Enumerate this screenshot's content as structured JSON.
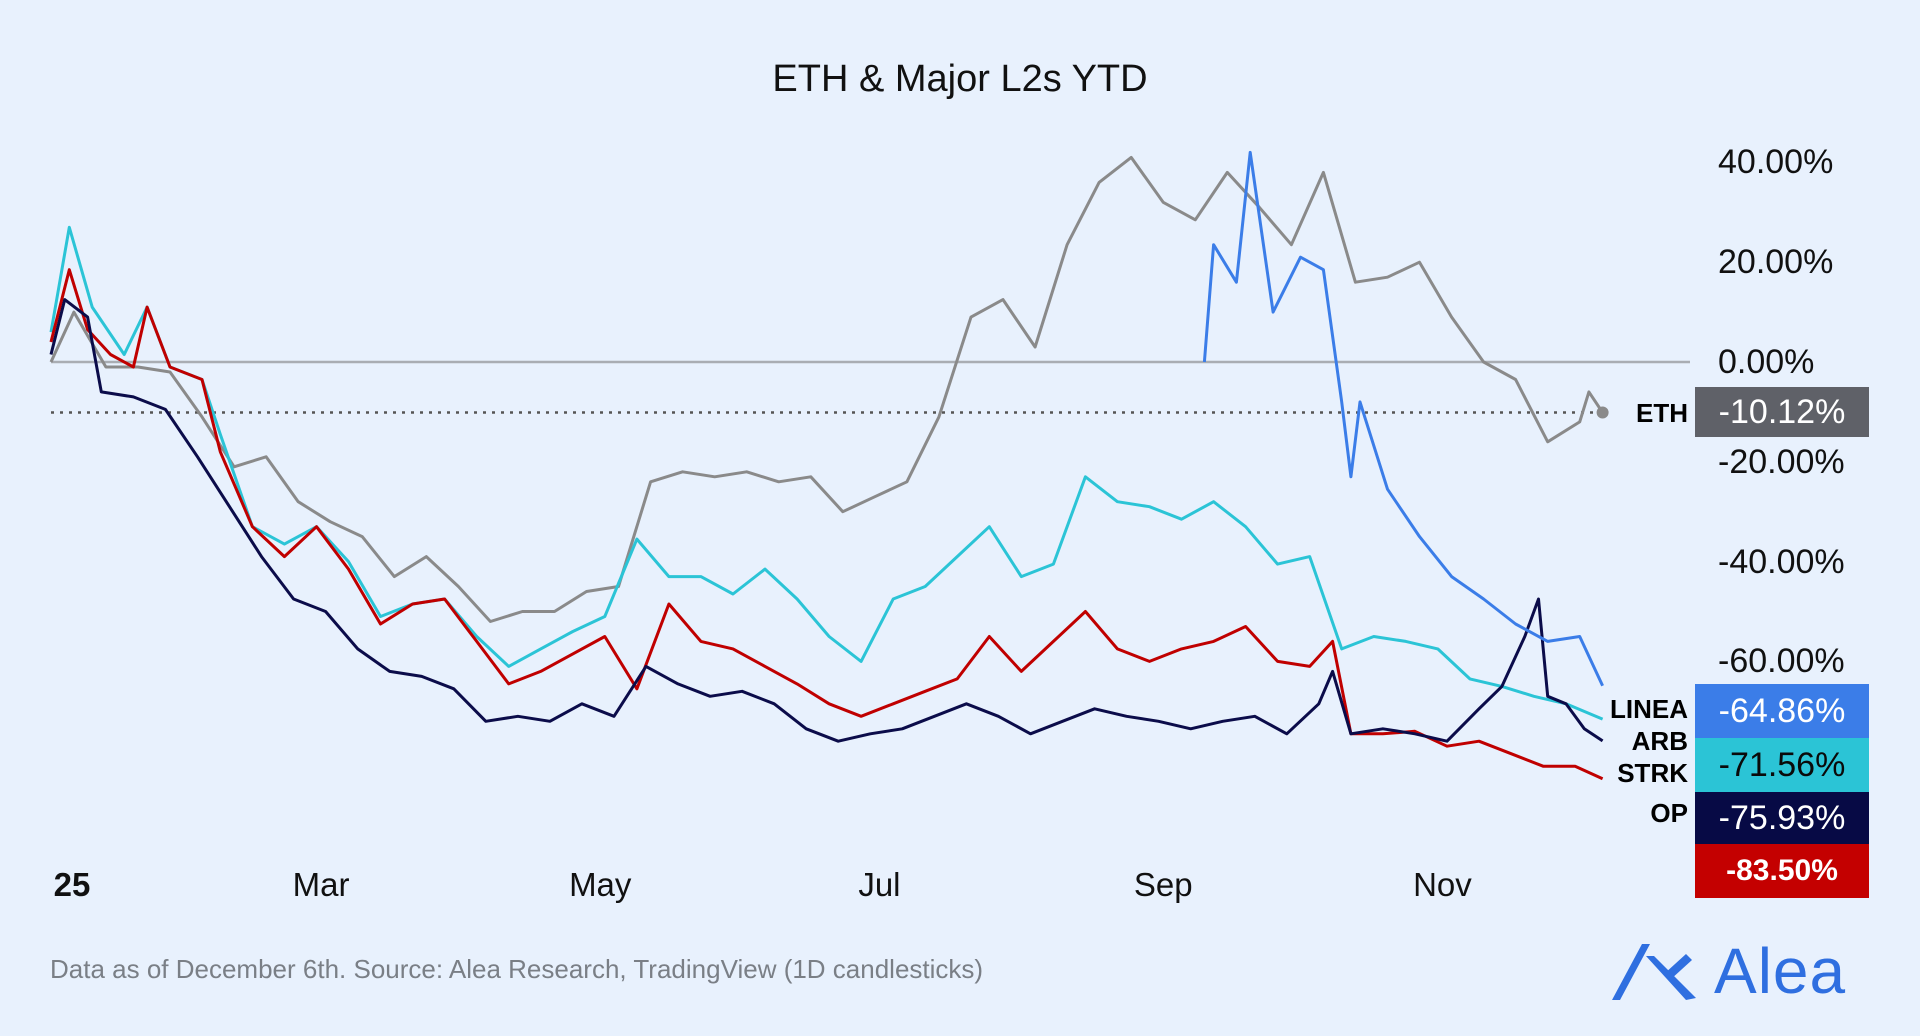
{
  "chart_data": {
    "type": "line",
    "title": "ETH & Major L2s YTD",
    "ylim": [
      -99,
      46
    ],
    "xlim": [
      "2025-01-01",
      "2025-12-20"
    ],
    "grid": false,
    "y_ticks": [
      "40.00%",
      "20.00%",
      "0.00%",
      "-20.00%",
      "-40.00%",
      "-60.00%"
    ],
    "y_tick_values": [
      40,
      20,
      0,
      -20,
      -40,
      -60
    ],
    "x_ticks": [
      {
        "label": "25",
        "date": "2025-01-01"
      },
      {
        "label": "Mar",
        "date": "2025-03-01"
      },
      {
        "label": "May",
        "date": "2025-05-01"
      },
      {
        "label": "Jul",
        "date": "2025-07-01"
      },
      {
        "label": "Sep",
        "date": "2025-09-01"
      },
      {
        "label": "Nov",
        "date": "2025-11-01"
      }
    ],
    "reference_line": {
      "value": -10.12,
      "style": "dotted"
    },
    "series": [
      {
        "name": "ETH",
        "color": "#8a8a8a",
        "last_label": "-10.12%",
        "box_color": "#5f6168",
        "box_text_color": "#ffffff",
        "points": [
          [
            "2025-01-01",
            0
          ],
          [
            "2025-01-06",
            10
          ],
          [
            "2025-01-13",
            -1
          ],
          [
            "2025-01-20",
            -1
          ],
          [
            "2025-01-27",
            -2
          ],
          [
            "2025-02-03",
            -11
          ],
          [
            "2025-02-10",
            -21
          ],
          [
            "2025-02-17",
            -19
          ],
          [
            "2025-02-24",
            -28
          ],
          [
            "2025-03-03",
            -32
          ],
          [
            "2025-03-10",
            -35
          ],
          [
            "2025-03-17",
            -43
          ],
          [
            "2025-03-24",
            -39
          ],
          [
            "2025-03-31",
            -45
          ],
          [
            "2025-04-07",
            -52
          ],
          [
            "2025-04-14",
            -50
          ],
          [
            "2025-04-21",
            -50
          ],
          [
            "2025-04-28",
            -46
          ],
          [
            "2025-05-05",
            -45
          ],
          [
            "2025-05-12",
            -24
          ],
          [
            "2025-05-19",
            -22
          ],
          [
            "2025-05-26",
            -23
          ],
          [
            "2025-06-02",
            -22
          ],
          [
            "2025-06-09",
            -24
          ],
          [
            "2025-06-16",
            -23
          ],
          [
            "2025-06-23",
            -30
          ],
          [
            "2025-06-30",
            -27
          ],
          [
            "2025-07-07",
            -24
          ],
          [
            "2025-07-14",
            -11
          ],
          [
            "2025-07-21",
            9
          ],
          [
            "2025-07-28",
            12.5
          ],
          [
            "2025-08-04",
            3
          ],
          [
            "2025-08-11",
            23.5
          ],
          [
            "2025-08-18",
            36
          ],
          [
            "2025-08-25",
            41
          ],
          [
            "2025-09-01",
            32
          ],
          [
            "2025-09-08",
            28.5
          ],
          [
            "2025-09-15",
            38
          ],
          [
            "2025-09-22",
            31
          ],
          [
            "2025-09-29",
            23.5
          ],
          [
            "2025-10-06",
            38
          ],
          [
            "2025-10-13",
            16
          ],
          [
            "2025-10-20",
            17
          ],
          [
            "2025-10-27",
            20
          ],
          [
            "2025-11-03",
            9
          ],
          [
            "2025-11-10",
            0
          ],
          [
            "2025-11-17",
            -3.5
          ],
          [
            "2025-11-24",
            -16
          ],
          [
            "2025-12-01",
            -12
          ],
          [
            "2025-12-03",
            -6
          ],
          [
            "2025-12-06",
            -10.12
          ]
        ]
      },
      {
        "name": "LINEA",
        "color": "#3b7de8",
        "last_label": "-64.86%",
        "box_color": "#3b7de8",
        "box_text_color": "#ffffff",
        "points": [
          [
            "2025-09-10",
            0
          ],
          [
            "2025-09-12",
            23.5
          ],
          [
            "2025-09-17",
            16
          ],
          [
            "2025-09-20",
            42
          ],
          [
            "2025-09-25",
            10
          ],
          [
            "2025-10-01",
            21
          ],
          [
            "2025-10-06",
            18.5
          ],
          [
            "2025-10-10",
            -8
          ],
          [
            "2025-10-12",
            -23
          ],
          [
            "2025-10-14",
            -8
          ],
          [
            "2025-10-20",
            -25.5
          ],
          [
            "2025-10-27",
            -35
          ],
          [
            "2025-11-03",
            -43
          ],
          [
            "2025-11-10",
            -47.5
          ],
          [
            "2025-11-17",
            -52.5
          ],
          [
            "2025-11-24",
            -56
          ],
          [
            "2025-12-01",
            -55
          ],
          [
            "2025-12-06",
            -64.86
          ]
        ]
      },
      {
        "name": "ARB",
        "color": "#2bc4d6",
        "last_label": "-71.56%",
        "box_color": "#2bc4d6",
        "box_text_color": "#0a0a0a",
        "points": [
          [
            "2025-01-01",
            6
          ],
          [
            "2025-01-05",
            27
          ],
          [
            "2025-01-10",
            11
          ],
          [
            "2025-01-17",
            1.5
          ],
          [
            "2025-01-22",
            11
          ],
          [
            "2025-01-27",
            -1
          ],
          [
            "2025-02-03",
            -3.5
          ],
          [
            "2025-02-07",
            -14.5
          ],
          [
            "2025-02-14",
            -33
          ],
          [
            "2025-02-21",
            -36.5
          ],
          [
            "2025-02-28",
            -33
          ],
          [
            "2025-03-07",
            -40
          ],
          [
            "2025-03-14",
            -51
          ],
          [
            "2025-03-21",
            -48.5
          ],
          [
            "2025-03-28",
            -47.5
          ],
          [
            "2025-04-04",
            -55
          ],
          [
            "2025-04-11",
            -61
          ],
          [
            "2025-04-18",
            -57.5
          ],
          [
            "2025-04-25",
            -54
          ],
          [
            "2025-05-02",
            -51
          ],
          [
            "2025-05-09",
            -35.5
          ],
          [
            "2025-05-16",
            -43
          ],
          [
            "2025-05-23",
            -43
          ],
          [
            "2025-05-30",
            -46.5
          ],
          [
            "2025-06-06",
            -41.5
          ],
          [
            "2025-06-13",
            -47.5
          ],
          [
            "2025-06-20",
            -55
          ],
          [
            "2025-06-27",
            -60
          ],
          [
            "2025-07-04",
            -47.5
          ],
          [
            "2025-07-11",
            -45
          ],
          [
            "2025-07-18",
            -39
          ],
          [
            "2025-07-25",
            -33
          ],
          [
            "2025-08-01",
            -43
          ],
          [
            "2025-08-08",
            -40.5
          ],
          [
            "2025-08-15",
            -23
          ],
          [
            "2025-08-22",
            -28
          ],
          [
            "2025-08-29",
            -29
          ],
          [
            "2025-09-05",
            -31.5
          ],
          [
            "2025-09-12",
            -28
          ],
          [
            "2025-09-19",
            -33
          ],
          [
            "2025-09-26",
            -40.5
          ],
          [
            "2025-10-03",
            -39
          ],
          [
            "2025-10-10",
            -57.5
          ],
          [
            "2025-10-17",
            -55
          ],
          [
            "2025-10-24",
            -56
          ],
          [
            "2025-10-31",
            -57.5
          ],
          [
            "2025-11-07",
            -63.5
          ],
          [
            "2025-11-14",
            -65
          ],
          [
            "2025-11-21",
            -67
          ],
          [
            "2025-11-28",
            -68.5
          ],
          [
            "2025-12-06",
            -71.56
          ]
        ]
      },
      {
        "name": "STRK",
        "color": "#0b0c4a",
        "last_label": "-75.93%",
        "box_color": "#070a45",
        "box_text_color": "#ffffff",
        "points": [
          [
            "2025-01-01",
            1.5
          ],
          [
            "2025-01-04",
            12.5
          ],
          [
            "2025-01-09",
            9
          ],
          [
            "2025-01-12",
            -6
          ],
          [
            "2025-01-19",
            -7
          ],
          [
            "2025-01-26",
            -9.5
          ],
          [
            "2025-02-02",
            -19
          ],
          [
            "2025-02-09",
            -29
          ],
          [
            "2025-02-16",
            -39
          ],
          [
            "2025-02-23",
            -47.5
          ],
          [
            "2025-03-02",
            -50
          ],
          [
            "2025-03-09",
            -57.5
          ],
          [
            "2025-03-16",
            -62
          ],
          [
            "2025-03-23",
            -63
          ],
          [
            "2025-03-30",
            -65.5
          ],
          [
            "2025-04-06",
            -72
          ],
          [
            "2025-04-13",
            -71
          ],
          [
            "2025-04-20",
            -72
          ],
          [
            "2025-04-27",
            -68.5
          ],
          [
            "2025-05-04",
            -71
          ],
          [
            "2025-05-11",
            -61
          ],
          [
            "2025-05-18",
            -64.5
          ],
          [
            "2025-05-25",
            -67
          ],
          [
            "2025-06-01",
            -66
          ],
          [
            "2025-06-08",
            -68.5
          ],
          [
            "2025-06-15",
            -73.5
          ],
          [
            "2025-06-22",
            -76
          ],
          [
            "2025-06-29",
            -74.5
          ],
          [
            "2025-07-06",
            -73.5
          ],
          [
            "2025-07-13",
            -71
          ],
          [
            "2025-07-20",
            -68.5
          ],
          [
            "2025-07-27",
            -71
          ],
          [
            "2025-08-03",
            -74.5
          ],
          [
            "2025-08-10",
            -72
          ],
          [
            "2025-08-17",
            -69.5
          ],
          [
            "2025-08-24",
            -71
          ],
          [
            "2025-08-31",
            -72
          ],
          [
            "2025-09-07",
            -73.5
          ],
          [
            "2025-09-14",
            -72
          ],
          [
            "2025-09-21",
            -71
          ],
          [
            "2025-09-28",
            -74.5
          ],
          [
            "2025-10-05",
            -68.5
          ],
          [
            "2025-10-08",
            -62
          ],
          [
            "2025-10-12",
            -74.5
          ],
          [
            "2025-10-19",
            -73.5
          ],
          [
            "2025-10-26",
            -74.5
          ],
          [
            "2025-11-02",
            -76
          ],
          [
            "2025-11-09",
            -69.5
          ],
          [
            "2025-11-14",
            -65
          ],
          [
            "2025-11-19",
            -55
          ],
          [
            "2025-11-22",
            -47.5
          ],
          [
            "2025-11-24",
            -67
          ],
          [
            "2025-11-28",
            -68.5
          ],
          [
            "2025-12-02",
            -73.5
          ],
          [
            "2025-12-06",
            -75.93
          ]
        ]
      },
      {
        "name": "OP",
        "color": "#c00000",
        "last_label": "-83.50%",
        "box_color": "#c40000",
        "box_text_color": "#ffffff",
        "points": [
          [
            "2025-01-01",
            4
          ],
          [
            "2025-01-05",
            18.5
          ],
          [
            "2025-01-09",
            6.5
          ],
          [
            "2025-01-14",
            1.5
          ],
          [
            "2025-01-19",
            -1
          ],
          [
            "2025-01-22",
            11
          ],
          [
            "2025-01-27",
            -1
          ],
          [
            "2025-02-03",
            -3.5
          ],
          [
            "2025-02-07",
            -18
          ],
          [
            "2025-02-14",
            -33
          ],
          [
            "2025-02-21",
            -39
          ],
          [
            "2025-02-28",
            -33
          ],
          [
            "2025-03-07",
            -41.5
          ],
          [
            "2025-03-14",
            -52.5
          ],
          [
            "2025-03-21",
            -48.5
          ],
          [
            "2025-03-28",
            -47.5
          ],
          [
            "2025-04-04",
            -56
          ],
          [
            "2025-04-11",
            -64.5
          ],
          [
            "2025-04-18",
            -62
          ],
          [
            "2025-04-25",
            -58.5
          ],
          [
            "2025-05-02",
            -55
          ],
          [
            "2025-05-09",
            -65.5
          ],
          [
            "2025-05-16",
            -48.5
          ],
          [
            "2025-05-23",
            -56
          ],
          [
            "2025-05-30",
            -57.5
          ],
          [
            "2025-06-06",
            -61
          ],
          [
            "2025-06-13",
            -64.5
          ],
          [
            "2025-06-20",
            -68.5
          ],
          [
            "2025-06-27",
            -71
          ],
          [
            "2025-07-04",
            -68.5
          ],
          [
            "2025-07-11",
            -66
          ],
          [
            "2025-07-18",
            -63.5
          ],
          [
            "2025-07-25",
            -55
          ],
          [
            "2025-08-01",
            -62
          ],
          [
            "2025-08-08",
            -56
          ],
          [
            "2025-08-15",
            -50
          ],
          [
            "2025-08-22",
            -57.5
          ],
          [
            "2025-08-29",
            -60
          ],
          [
            "2025-09-05",
            -57.5
          ],
          [
            "2025-09-12",
            -56
          ],
          [
            "2025-09-19",
            -53
          ],
          [
            "2025-09-26",
            -60
          ],
          [
            "2025-10-03",
            -61
          ],
          [
            "2025-10-08",
            -56
          ],
          [
            "2025-10-12",
            -74.5
          ],
          [
            "2025-10-19",
            -74.5
          ],
          [
            "2025-10-26",
            -74
          ],
          [
            "2025-11-02",
            -77
          ],
          [
            "2025-11-09",
            -76
          ],
          [
            "2025-11-16",
            -78.5
          ],
          [
            "2025-11-23",
            -81
          ],
          [
            "2025-11-30",
            -81
          ],
          [
            "2025-12-06",
            -83.5
          ]
        ]
      }
    ]
  },
  "footer": {
    "source": "Data as of December 6th. Source: Alea Research, TradingView (1D candlesticks)"
  },
  "logo": {
    "text": "Alea",
    "color": "#2f6fe0"
  }
}
